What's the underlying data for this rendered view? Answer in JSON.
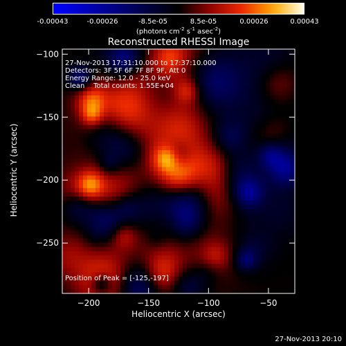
{
  "colorbar": {
    "ticks": [
      "-0.00043",
      "-0.00026",
      "-8.5e-05",
      "8.5e-05",
      "0.00026",
      "0.00043"
    ],
    "unit_prefix": "(photons cm",
    "unit_exp1": "-2",
    "unit_mid1": " s",
    "unit_exp2": "-1",
    "unit_mid2": " asec",
    "unit_exp3": "-2",
    "unit_suffix": ")"
  },
  "info": {
    "time_range": "27-Nov-2013 17:31:10.000 to 17:37:10.000",
    "detectors": "Detectors: 3F 5F 6F 7F 8F 9F, Att 0",
    "energy": "Energy Range: 12.0 - 25.0 keV",
    "clean": "Clean    Total counts: 1.55E+04",
    "peak": "Position of Peak = [-125,-197]"
  },
  "timestamp": "27-Nov-2013 20:10",
  "colors": {
    "frame": "#ffffff",
    "background": "#000000"
  },
  "chart_data": {
    "type": "heatmap",
    "title": "Reconstructed RHESSI Image",
    "xlabel": "Heliocentric X (arcsec)",
    "ylabel": "Heliocentric Y (arcsec)",
    "xlim": [
      -222,
      -28
    ],
    "ylim": [
      -290,
      -96
    ],
    "xticks": [
      -200,
      -150,
      -100,
      -50
    ],
    "yticks": [
      -100,
      -150,
      -200,
      -250
    ],
    "peak": [
      -125,
      -197
    ],
    "colormap": "rhessi-bluered",
    "colorbar_range": [
      -0.00043,
      0.00043
    ]
  }
}
